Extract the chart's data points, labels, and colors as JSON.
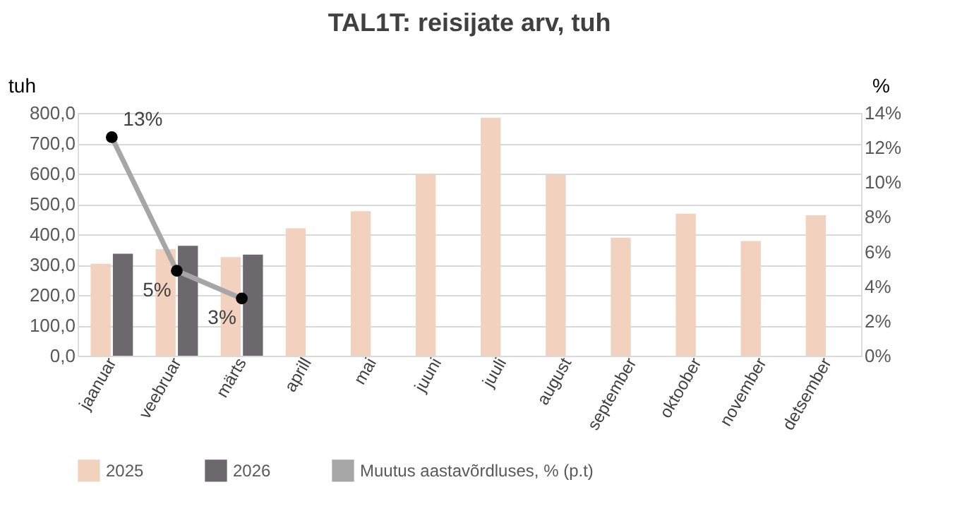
{
  "chart_data": {
    "type": "bar",
    "title": "TAL1T:  reisijate arv, tuh",
    "ylabel": "tuh",
    "y2label": "%",
    "categories": [
      "jaanuar",
      "veebruar",
      "märts",
      "aprill",
      "mai",
      "juuni",
      "juuli",
      "august",
      "september",
      "oktoober",
      "november",
      "detsember"
    ],
    "series": [
      {
        "name": "2025",
        "color": "#f2d2be",
        "values": [
          303,
          351,
          325,
          420,
          476,
          599,
          784,
          596,
          389,
          468,
          378,
          463
        ]
      },
      {
        "name": "2026",
        "color": "#6d676e",
        "values": [
          336,
          362,
          333,
          null,
          null,
          null,
          null,
          null,
          null,
          null,
          null,
          null
        ]
      },
      {
        "name": "Muutus aastavõrdluses, % (p.t)",
        "type": "line",
        "axis": "y2",
        "color": "#a6a6a6",
        "marker": "circle",
        "values": [
          12.6,
          4.9,
          3.3,
          null,
          null,
          null,
          null,
          null,
          null,
          null,
          null,
          null
        ],
        "value_labels": [
          "13%",
          "5%",
          "3%",
          null,
          null,
          null,
          null,
          null,
          null,
          null,
          null,
          null
        ]
      }
    ],
    "ylim": [
      0,
      800
    ],
    "yticks": [
      {
        "value": 0,
        "label": "0,0"
      },
      {
        "value": 100,
        "label": "100,0"
      },
      {
        "value": 200,
        "label": "200,0"
      },
      {
        "value": 300,
        "label": "300,0"
      },
      {
        "value": 400,
        "label": "400,0"
      },
      {
        "value": 500,
        "label": "500,0"
      },
      {
        "value": 600,
        "label": "600,0"
      },
      {
        "value": 700,
        "label": "700,0"
      },
      {
        "value": 800,
        "label": "800,0"
      }
    ],
    "y2lim": [
      0,
      14
    ],
    "y2ticks": [
      {
        "value": 0,
        "label": "0%"
      },
      {
        "value": 2,
        "label": "2%"
      },
      {
        "value": 4,
        "label": "4%"
      },
      {
        "value": 6,
        "label": "6%"
      },
      {
        "value": 8,
        "label": "8%"
      },
      {
        "value": 10,
        "label": "10%"
      },
      {
        "value": 12,
        "label": "12%"
      },
      {
        "value": 14,
        "label": "14%"
      }
    ],
    "grid": "y",
    "legend": "bottom"
  }
}
